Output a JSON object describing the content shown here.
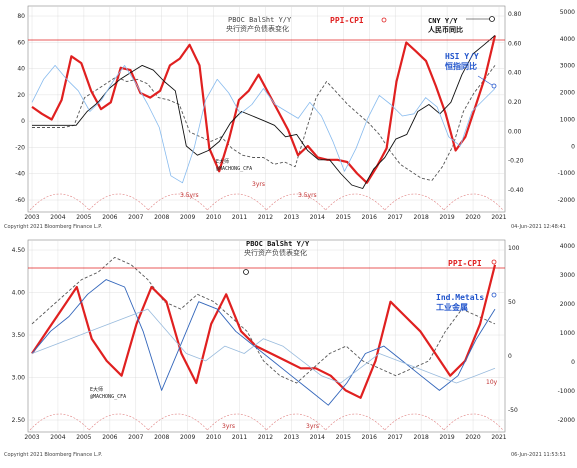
{
  "colors": {
    "ppi_cpi": "#e02020",
    "pboc": "#555555",
    "cny": "#111111",
    "hsi": "#88bbee",
    "metals": "#3366bb",
    "tenyear": "#99bbdd",
    "cycle": "#e08080",
    "grid": "#d8d8d8"
  },
  "panel1": {
    "footer_left": "Copyright 2021 Bloomberg Finance L.P.",
    "footer_right": "04-Jun-2021 12:48:41",
    "annotations": {
      "pboc_title": "PBOC BalSht Y/Y",
      "pboc_cn": "央行资产负债表变化",
      "ppi": "PPI-CPI",
      "cny_title": "CNY Y/Y",
      "cny_cn": "人民币同比",
      "hsi_title": "HSI Y/Y",
      "hsi_cn": "恒指同比",
      "src1": "E大师",
      "src2": "@MACHONG_CFA",
      "cycle_a": "3yrs",
      "cycle_b": "3.5yrs",
      "cycle_c": "3.5yrs"
    }
  },
  "panel2": {
    "footer_left": "Copyright 2021 Bloomberg Finance L.P.",
    "footer_right": "06-Jun-2021 11:53:51",
    "annotations": {
      "pboc_title": "PBOC BalSht Y/Y",
      "pboc_cn": "央行资产负债表变化",
      "ppi": "PPI-CPI",
      "metals_title": "Ind.Metals",
      "metals_cn": "工业金属",
      "tenyear": "10y",
      "src1": "E大师",
      "src2": "@MACHONG_CFA",
      "cycle_a": "3yrs",
      "cycle_b": "3yrs"
    }
  },
  "chart_data": [
    {
      "type": "line",
      "x_tick_labels": [
        "2003",
        "2004",
        "2005",
        "2006",
        "2007",
        "2008",
        "2009",
        "2010",
        "2011",
        "2012",
        "2013",
        "2014",
        "2015",
        "2016",
        "2017",
        "2018",
        "2019",
        "2020",
        "2021"
      ],
      "left_axis": {
        "ticks": [
          "80",
          "60",
          "40",
          "20",
          "0",
          "-20",
          "-40",
          "-60"
        ],
        "ylim": [
          -65,
          95
        ]
      },
      "right_axis_inner": {
        "ticks": [
          "0.80",
          "0.60",
          "0.40",
          "0.20",
          "0.00",
          "-0.20",
          "-0.40"
        ]
      },
      "right_axis_outer": {
        "ticks": [
          "5000",
          "4000",
          "3000",
          "2000",
          "1000",
          "0",
          "-1000",
          "-2000"
        ]
      },
      "series": [
        {
          "name": "PBOC BalSht Y/Y",
          "values": [
            -2,
            -2,
            -2,
            -2,
            0,
            24,
            30,
            36,
            42,
            38,
            40,
            36,
            24,
            22,
            18,
            -6,
            -10,
            -14,
            -10,
            -20,
            -26,
            -28,
            -28,
            -34,
            -32,
            -36,
            -6,
            24,
            38,
            28,
            18,
            10,
            2,
            -8,
            -22,
            -34,
            -40,
            -46,
            -48,
            -36,
            -18,
            12,
            28,
            40,
            52
          ]
        },
        {
          "name": "PPI-CPI",
          "values": [
            16,
            10,
            5,
            22,
            60,
            54,
            30,
            14,
            20,
            50,
            48,
            28,
            24,
            30,
            52,
            58,
            70,
            52,
            -20,
            -40,
            -12,
            22,
            30,
            44,
            28,
            12,
            -4,
            -26,
            -18,
            -28,
            -30,
            -30,
            -32,
            -42,
            -50,
            -36,
            -20,
            38,
            72,
            64,
            56,
            34,
            10,
            -22,
            -10,
            16,
            42,
            78
          ]
        },
        {
          "name": "CNY Y/Y",
          "values": [
            0,
            0,
            0,
            0,
            0,
            12,
            20,
            32,
            40,
            46,
            52,
            48,
            38,
            30,
            -18,
            -26,
            -22,
            -14,
            2,
            12,
            8,
            4,
            0,
            -10,
            -8,
            -22,
            -30,
            -30,
            -42,
            -52,
            -55,
            -38,
            -28,
            -12,
            -8,
            12,
            18,
            10,
            20,
            44,
            62,
            70,
            78
          ]
        },
        {
          "name": "HSI Y/Y",
          "values": [
            20,
            40,
            52,
            40,
            30,
            12,
            22,
            38,
            52,
            36,
            18,
            -2,
            -44,
            -50,
            -20,
            22,
            40,
            28,
            10,
            18,
            32,
            18,
            12,
            6,
            20,
            8,
            -14,
            -40,
            -20,
            6,
            26,
            18,
            8,
            10,
            24,
            16,
            -10,
            -18,
            12,
            22,
            32
          ]
        }
      ]
    },
    {
      "type": "line",
      "x_tick_labels": [
        "2003",
        "2004",
        "2005",
        "2006",
        "2007",
        "2008",
        "2009",
        "2010",
        "2011",
        "2012",
        "2013",
        "2014",
        "2015",
        "2016",
        "2017",
        "2018",
        "2019",
        "2020",
        "2021"
      ],
      "left_axis": {
        "ticks": [
          "4.50",
          "4.00",
          "3.50",
          "3.00",
          "2.50"
        ],
        "ylim": [
          2.4,
          4.7
        ]
      },
      "right_axis_inner": {
        "ticks": [
          "100",
          "50",
          "0",
          "-50"
        ]
      },
      "right_axis_outer": {
        "ticks": [
          "4000",
          "3000",
          "2000",
          "1000",
          "0",
          "-1000",
          "-2000"
        ]
      },
      "series": [
        {
          "name": "PBOC BalSht Y/Y",
          "values": [
            3.7,
            3.9,
            4.1,
            4.3,
            4.4,
            4.6,
            4.5,
            4.3,
            4.0,
            3.9,
            4.1,
            4.0,
            3.8,
            3.6,
            3.2,
            3.0,
            2.9,
            3.1,
            3.3,
            3.4,
            3.2,
            3.1,
            3.0,
            3.1,
            3.2,
            3.6,
            3.9,
            3.8,
            3.7
          ]
        },
        {
          "name": "PPI-CPI",
          "values": [
            3.3,
            3.6,
            3.9,
            4.2,
            3.5,
            3.2,
            3.0,
            3.7,
            4.2,
            4.0,
            3.3,
            2.9,
            3.7,
            4.1,
            3.6,
            3.4,
            3.3,
            3.2,
            3.1,
            3.1,
            3.0,
            2.8,
            2.7,
            3.2,
            4.0,
            3.8,
            3.6,
            3.3,
            3.0,
            3.2,
            3.7,
            4.5
          ]
        },
        {
          "name": "Ind.Metals",
          "values": [
            3.3,
            3.6,
            3.8,
            4.1,
            4.3,
            4.2,
            3.6,
            2.8,
            3.4,
            4.0,
            3.9,
            3.6,
            3.4,
            3.2,
            3.0,
            2.8,
            2.6,
            2.9,
            3.3,
            3.4,
            3.2,
            3.0,
            2.8,
            3.0,
            3.5,
            3.9
          ]
        },
        {
          "name": "10y",
          "values": [
            3.3,
            3.4,
            3.5,
            3.6,
            3.7,
            3.8,
            3.9,
            3.6,
            3.3,
            3.2,
            3.4,
            3.3,
            3.5,
            3.4,
            3.2,
            3.0,
            2.9,
            3.1,
            3.3,
            3.2,
            3.1,
            3.0,
            2.9,
            3.0,
            3.1
          ]
        }
      ]
    }
  ]
}
